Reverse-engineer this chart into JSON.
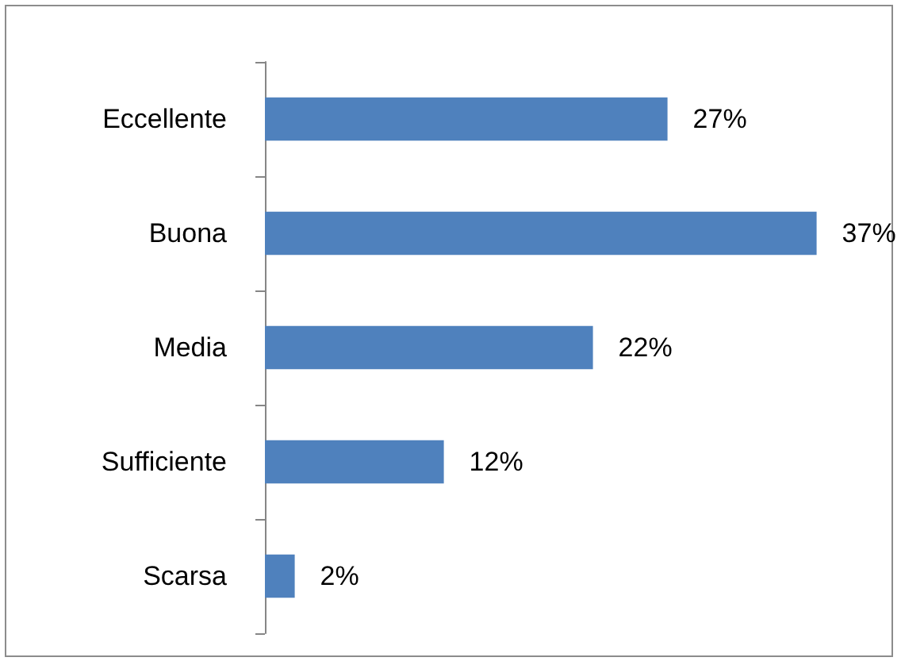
{
  "chart_data": {
    "type": "bar",
    "orientation": "horizontal",
    "categories": [
      "Eccellente",
      "Buona",
      "Media",
      "Sufficiente",
      "Scarsa"
    ],
    "values": [
      27,
      37,
      22,
      12,
      2
    ],
    "value_labels": [
      "27%",
      "37%",
      "22%",
      "12%",
      "2%"
    ],
    "color": "#4f81bd"
  }
}
